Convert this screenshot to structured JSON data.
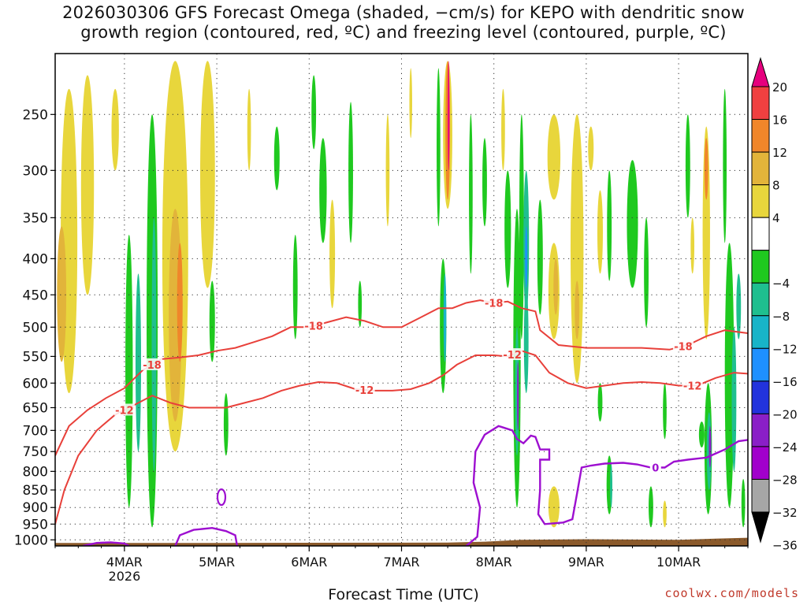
{
  "title_line1": "2026030306 GFS Forecast Omega (shaded, −cm/s) for KEPO with dendritic snow",
  "title_line2": "growth region (contoured, red, ºC) and freezing level (contoured, purple, ºC)",
  "credit": "coolwx.com/models",
  "chart_data": {
    "type": "heatmap",
    "xlabel": "Forecast Time (UTC)",
    "ylabel": "",
    "x_ticks": [
      {
        "label": "4MAR",
        "sub": "2026"
      },
      {
        "label": "5MAR",
        "sub": ""
      },
      {
        "label": "6MAR",
        "sub": ""
      },
      {
        "label": "7MAR",
        "sub": ""
      },
      {
        "label": "8MAR",
        "sub": ""
      },
      {
        "label": "9MAR",
        "sub": ""
      },
      {
        "label": "10MAR",
        "sub": ""
      }
    ],
    "x_range_days": [
      3.25,
      10.75
    ],
    "y_axis_pressure_hpa": [
      250,
      300,
      350,
      400,
      450,
      500,
      550,
      600,
      650,
      700,
      750,
      800,
      850,
      900,
      950,
      1000
    ],
    "y_scale": "log",
    "y_range_hpa": [
      205,
      1020
    ],
    "grid": true,
    "colorbar": {
      "labels": [
        "20",
        "16",
        "12",
        "8",
        "4",
        "−4",
        "−8",
        "−12",
        "−16",
        "−20",
        "−24",
        "−28",
        "−32",
        "−36"
      ],
      "colors": [
        "#e6007e",
        "#f04040",
        "#f0862a",
        "#e2b43a",
        "#e8d63c",
        "#ffffff",
        "#1fc91f",
        "#1fbf8f",
        "#18b4c8",
        "#1e90ff",
        "#2233dd",
        "#8a1fc7",
        "#a100cc",
        "#a6a6a6",
        "#000000"
      ]
    },
    "omega_regions": [
      {
        "day": 3.4,
        "p_top": 230,
        "p_bot": 620,
        "width": 0.18,
        "color": "#e8d63c"
      },
      {
        "day": 3.32,
        "p_top": 360,
        "p_bot": 560,
        "width": 0.1,
        "color": "#e2b43a"
      },
      {
        "day": 3.6,
        "p_top": 220,
        "p_bot": 450,
        "width": 0.14,
        "color": "#e8d63c"
      },
      {
        "day": 3.9,
        "p_top": 230,
        "p_bot": 300,
        "width": 0.08,
        "color": "#e8d63c"
      },
      {
        "day": 4.05,
        "p_top": 370,
        "p_bot": 900,
        "width": 0.08,
        "color": "#1fc91f"
      },
      {
        "day": 4.15,
        "p_top": 420,
        "p_bot": 750,
        "width": 0.06,
        "color": "#1fbf8f"
      },
      {
        "day": 4.3,
        "p_top": 250,
        "p_bot": 960,
        "width": 0.12,
        "color": "#1fc91f"
      },
      {
        "day": 4.32,
        "p_top": 350,
        "p_bot": 800,
        "width": 0.05,
        "color": "#1fbf8f"
      },
      {
        "day": 4.55,
        "p_top": 210,
        "p_bot": 750,
        "width": 0.28,
        "color": "#e8d63c"
      },
      {
        "day": 4.55,
        "p_top": 340,
        "p_bot": 680,
        "width": 0.14,
        "color": "#e2b43a"
      },
      {
        "day": 4.6,
        "p_top": 380,
        "p_bot": 560,
        "width": 0.06,
        "color": "#f0862a"
      },
      {
        "day": 4.9,
        "p_top": 210,
        "p_bot": 440,
        "width": 0.16,
        "color": "#e8d63c"
      },
      {
        "day": 4.95,
        "p_top": 430,
        "p_bot": 560,
        "width": 0.06,
        "color": "#1fc91f"
      },
      {
        "day": 5.1,
        "p_top": 620,
        "p_bot": 760,
        "width": 0.05,
        "color": "#1fc91f"
      },
      {
        "day": 5.35,
        "p_top": 230,
        "p_bot": 300,
        "width": 0.04,
        "color": "#e8d63c"
      },
      {
        "day": 5.65,
        "p_top": 260,
        "p_bot": 320,
        "width": 0.06,
        "color": "#1fc91f"
      },
      {
        "day": 5.85,
        "p_top": 370,
        "p_bot": 520,
        "width": 0.05,
        "color": "#1fc91f"
      },
      {
        "day": 6.05,
        "p_top": 220,
        "p_bot": 280,
        "width": 0.05,
        "color": "#1fc91f"
      },
      {
        "day": 6.15,
        "p_top": 270,
        "p_bot": 380,
        "width": 0.08,
        "color": "#1fc91f"
      },
      {
        "day": 6.25,
        "p_top": 330,
        "p_bot": 470,
        "width": 0.06,
        "color": "#e8d63c"
      },
      {
        "day": 6.45,
        "p_top": 240,
        "p_bot": 380,
        "width": 0.05,
        "color": "#1fc91f"
      },
      {
        "day": 6.55,
        "p_top": 430,
        "p_bot": 500,
        "width": 0.04,
        "color": "#1fc91f"
      },
      {
        "day": 6.85,
        "p_top": 250,
        "p_bot": 360,
        "width": 0.04,
        "color": "#e8d63c"
      },
      {
        "day": 7.1,
        "p_top": 215,
        "p_bot": 270,
        "width": 0.03,
        "color": "#e8d63c"
      },
      {
        "day": 7.4,
        "p_top": 215,
        "p_bot": 360,
        "width": 0.04,
        "color": "#1fc91f"
      },
      {
        "day": 7.5,
        "p_top": 210,
        "p_bot": 340,
        "width": 0.1,
        "color": "#e8d63c"
      },
      {
        "day": 7.5,
        "p_top": 210,
        "p_bot": 330,
        "width": 0.05,
        "color": "#f0862a"
      },
      {
        "day": 7.51,
        "p_top": 210,
        "p_bot": 300,
        "width": 0.02,
        "color": "#e6007e"
      },
      {
        "day": 7.45,
        "p_top": 400,
        "p_bot": 620,
        "width": 0.07,
        "color": "#1fc91f"
      },
      {
        "day": 7.47,
        "p_top": 420,
        "p_bot": 560,
        "width": 0.03,
        "color": "#18b4c8"
      },
      {
        "day": 7.75,
        "p_top": 250,
        "p_bot": 420,
        "width": 0.04,
        "color": "#1fc91f"
      },
      {
        "day": 7.9,
        "p_top": 270,
        "p_bot": 360,
        "width": 0.05,
        "color": "#1fc91f"
      },
      {
        "day": 8.1,
        "p_top": 230,
        "p_bot": 300,
        "width": 0.04,
        "color": "#e8d63c"
      },
      {
        "day": 8.15,
        "p_top": 300,
        "p_bot": 440,
        "width": 0.07,
        "color": "#1fc91f"
      },
      {
        "day": 8.25,
        "p_top": 340,
        "p_bot": 900,
        "width": 0.08,
        "color": "#1fc91f"
      },
      {
        "day": 8.25,
        "p_top": 500,
        "p_bot": 760,
        "width": 0.04,
        "color": "#1fbf8f"
      },
      {
        "day": 8.26,
        "p_top": 560,
        "p_bot": 700,
        "width": 0.02,
        "color": "#8a1fc7"
      },
      {
        "day": 8.3,
        "p_top": 250,
        "p_bot": 520,
        "width": 0.05,
        "color": "#1fc91f"
      },
      {
        "day": 8.35,
        "p_top": 300,
        "p_bot": 480,
        "width": 0.06,
        "color": "#1fbf8f"
      },
      {
        "day": 8.35,
        "p_top": 360,
        "p_bot": 440,
        "width": 0.025,
        "color": "#1e90ff"
      },
      {
        "day": 8.35,
        "p_top": 440,
        "p_bot": 620,
        "width": 0.05,
        "color": "#1fbf8f"
      },
      {
        "day": 8.5,
        "p_top": 330,
        "p_bot": 480,
        "width": 0.06,
        "color": "#1fc91f"
      },
      {
        "day": 8.65,
        "p_top": 250,
        "p_bot": 330,
        "width": 0.14,
        "color": "#e8d63c"
      },
      {
        "day": 8.65,
        "p_top": 380,
        "p_bot": 520,
        "width": 0.12,
        "color": "#e8d63c"
      },
      {
        "day": 8.67,
        "p_top": 400,
        "p_bot": 480,
        "width": 0.05,
        "color": "#e2b43a"
      },
      {
        "day": 8.65,
        "p_top": 840,
        "p_bot": 960,
        "width": 0.12,
        "color": "#e8d63c"
      },
      {
        "day": 8.9,
        "p_top": 250,
        "p_bot": 600,
        "width": 0.14,
        "color": "#e8d63c"
      },
      {
        "day": 8.9,
        "p_top": 430,
        "p_bot": 520,
        "width": 0.05,
        "color": "#e2b43a"
      },
      {
        "day": 9.05,
        "p_top": 260,
        "p_bot": 300,
        "width": 0.06,
        "color": "#e8d63c"
      },
      {
        "day": 9.15,
        "p_top": 320,
        "p_bot": 420,
        "width": 0.06,
        "color": "#e8d63c"
      },
      {
        "day": 9.15,
        "p_top": 600,
        "p_bot": 680,
        "width": 0.05,
        "color": "#1fc91f"
      },
      {
        "day": 9.25,
        "p_top": 300,
        "p_bot": 430,
        "width": 0.05,
        "color": "#1fc91f"
      },
      {
        "day": 9.25,
        "p_top": 760,
        "p_bot": 920,
        "width": 0.06,
        "color": "#1fc91f"
      },
      {
        "day": 9.27,
        "p_top": 780,
        "p_bot": 900,
        "width": 0.025,
        "color": "#1fbf8f"
      },
      {
        "day": 9.5,
        "p_top": 290,
        "p_bot": 440,
        "width": 0.12,
        "color": "#1fc91f"
      },
      {
        "day": 9.65,
        "p_top": 350,
        "p_bot": 500,
        "width": 0.05,
        "color": "#1fc91f"
      },
      {
        "day": 9.7,
        "p_top": 840,
        "p_bot": 960,
        "width": 0.05,
        "color": "#1fc91f"
      },
      {
        "day": 9.85,
        "p_top": 600,
        "p_bot": 720,
        "width": 0.04,
        "color": "#1fc91f"
      },
      {
        "day": 9.85,
        "p_top": 880,
        "p_bot": 960,
        "width": 0.04,
        "color": "#e8d63c"
      },
      {
        "day": 10.1,
        "p_top": 250,
        "p_bot": 350,
        "width": 0.05,
        "color": "#1fc91f"
      },
      {
        "day": 10.15,
        "p_top": 350,
        "p_bot": 420,
        "width": 0.04,
        "color": "#e8d63c"
      },
      {
        "day": 10.25,
        "p_top": 680,
        "p_bot": 740,
        "width": 0.06,
        "color": "#1fc91f"
      },
      {
        "day": 10.3,
        "p_top": 260,
        "p_bot": 520,
        "width": 0.08,
        "color": "#e8d63c"
      },
      {
        "day": 10.3,
        "p_top": 270,
        "p_bot": 330,
        "width": 0.04,
        "color": "#f0862a"
      },
      {
        "day": 10.32,
        "p_top": 600,
        "p_bot": 920,
        "width": 0.08,
        "color": "#1fc91f"
      },
      {
        "day": 10.33,
        "p_top": 660,
        "p_bot": 850,
        "width": 0.05,
        "color": "#1fbf8f"
      },
      {
        "day": 10.34,
        "p_top": 690,
        "p_bot": 790,
        "width": 0.025,
        "color": "#8a1fc7"
      },
      {
        "day": 10.5,
        "p_top": 230,
        "p_bot": 380,
        "width": 0.04,
        "color": "#1fc91f"
      },
      {
        "day": 10.55,
        "p_top": 380,
        "p_bot": 900,
        "width": 0.1,
        "color": "#1fc91f"
      },
      {
        "day": 10.6,
        "p_top": 500,
        "p_bot": 800,
        "width": 0.05,
        "color": "#1fbf8f"
      },
      {
        "day": 10.65,
        "p_top": 420,
        "p_bot": 520,
        "width": 0.05,
        "color": "#1fbf8f"
      },
      {
        "day": 10.7,
        "p_top": 820,
        "p_bot": 960,
        "width": 0.04,
        "color": "#1fc91f"
      }
    ],
    "contours": [
      {
        "name": "-18",
        "color": "#e8403a",
        "labels_at_day": [
          4.3,
          6.05,
          8.0,
          10.05
        ],
        "points": [
          [
            3.25,
            760
          ],
          [
            3.4,
            690
          ],
          [
            3.6,
            655
          ],
          [
            3.8,
            630
          ],
          [
            4.0,
            610
          ],
          [
            4.2,
            575
          ],
          [
            4.4,
            555
          ],
          [
            4.6,
            552
          ],
          [
            4.8,
            548
          ],
          [
            5.0,
            540
          ],
          [
            5.2,
            535
          ],
          [
            5.4,
            525
          ],
          [
            5.6,
            515
          ],
          [
            5.8,
            500
          ],
          [
            6.0,
            500
          ],
          [
            6.2,
            492
          ],
          [
            6.4,
            484
          ],
          [
            6.6,
            490
          ],
          [
            6.8,
            500
          ],
          [
            7.0,
            500
          ],
          [
            7.2,
            485
          ],
          [
            7.4,
            470
          ],
          [
            7.55,
            470
          ],
          [
            7.7,
            462
          ],
          [
            7.85,
            458
          ],
          [
            8.0,
            462
          ],
          [
            8.15,
            460
          ],
          [
            8.3,
            470
          ],
          [
            8.45,
            475
          ],
          [
            8.5,
            505
          ],
          [
            8.7,
            530
          ],
          [
            9.0,
            535
          ],
          [
            9.3,
            535
          ],
          [
            9.6,
            535
          ],
          [
            9.9,
            538
          ],
          [
            10.1,
            530
          ],
          [
            10.3,
            515
          ],
          [
            10.5,
            505
          ],
          [
            10.75,
            510
          ]
        ]
      },
      {
        "name": "-12",
        "color": "#e8403a",
        "labels_at_day": [
          4.0,
          6.6,
          8.2,
          10.15
        ],
        "points": [
          [
            3.25,
            950
          ],
          [
            3.35,
            850
          ],
          [
            3.5,
            760
          ],
          [
            3.7,
            700
          ],
          [
            3.9,
            665
          ],
          [
            4.1,
            645
          ],
          [
            4.3,
            625
          ],
          [
            4.5,
            640
          ],
          [
            4.7,
            650
          ],
          [
            4.9,
            650
          ],
          [
            5.1,
            650
          ],
          [
            5.3,
            640
          ],
          [
            5.5,
            630
          ],
          [
            5.7,
            615
          ],
          [
            5.9,
            605
          ],
          [
            6.1,
            598
          ],
          [
            6.3,
            600
          ],
          [
            6.5,
            612
          ],
          [
            6.7,
            615
          ],
          [
            6.9,
            615
          ],
          [
            7.1,
            612
          ],
          [
            7.3,
            600
          ],
          [
            7.45,
            585
          ],
          [
            7.6,
            565
          ],
          [
            7.8,
            548
          ],
          [
            8.0,
            548
          ],
          [
            8.15,
            550
          ],
          [
            8.3,
            540
          ],
          [
            8.45,
            548
          ],
          [
            8.6,
            580
          ],
          [
            8.8,
            600
          ],
          [
            9.0,
            610
          ],
          [
            9.2,
            605
          ],
          [
            9.4,
            600
          ],
          [
            9.6,
            598
          ],
          [
            9.8,
            600
          ],
          [
            10.0,
            605
          ],
          [
            10.2,
            605
          ],
          [
            10.4,
            590
          ],
          [
            10.6,
            580
          ],
          [
            10.75,
            582
          ]
        ]
      }
    ],
    "freezing_contour": {
      "name": "0",
      "color": "#9d0fd0",
      "label_day": 9.75,
      "segments": [
        [
          [
            3.55,
            1020
          ],
          [
            3.7,
            1010
          ],
          [
            3.85,
            1008
          ],
          [
            4.0,
            1012
          ],
          [
            4.05,
            1020
          ]
        ],
        [
          [
            4.55,
            1020
          ],
          [
            4.6,
            985
          ],
          [
            4.75,
            968
          ],
          [
            4.95,
            962
          ],
          [
            5.1,
            972
          ],
          [
            5.2,
            985
          ],
          [
            5.22,
            1020
          ]
        ],
        [
          [
            7.7,
            1020
          ],
          [
            7.82,
            990
          ],
          [
            7.85,
            900
          ],
          [
            7.78,
            830
          ],
          [
            7.8,
            750
          ],
          [
            7.9,
            710
          ],
          [
            8.05,
            690
          ],
          [
            8.2,
            700
          ],
          [
            8.25,
            720
          ],
          [
            8.32,
            730
          ],
          [
            8.4,
            712
          ],
          [
            8.45,
            715
          ],
          [
            8.5,
            745
          ],
          [
            8.6,
            745
          ],
          [
            8.6,
            770
          ],
          [
            8.5,
            770
          ],
          [
            8.5,
            850
          ],
          [
            8.48,
            920
          ],
          [
            8.55,
            950
          ],
          [
            8.75,
            945
          ],
          [
            8.85,
            935
          ],
          [
            8.9,
            860
          ],
          [
            8.95,
            790
          ],
          [
            9.05,
            785
          ],
          [
            9.2,
            780
          ],
          [
            9.4,
            778
          ],
          [
            9.55,
            782
          ],
          [
            9.7,
            790
          ],
          [
            9.85,
            790
          ],
          [
            9.95,
            775
          ],
          [
            10.1,
            770
          ],
          [
            10.3,
            765
          ],
          [
            10.5,
            745
          ],
          [
            10.65,
            725
          ],
          [
            10.75,
            722
          ]
        ]
      ]
    }
  }
}
